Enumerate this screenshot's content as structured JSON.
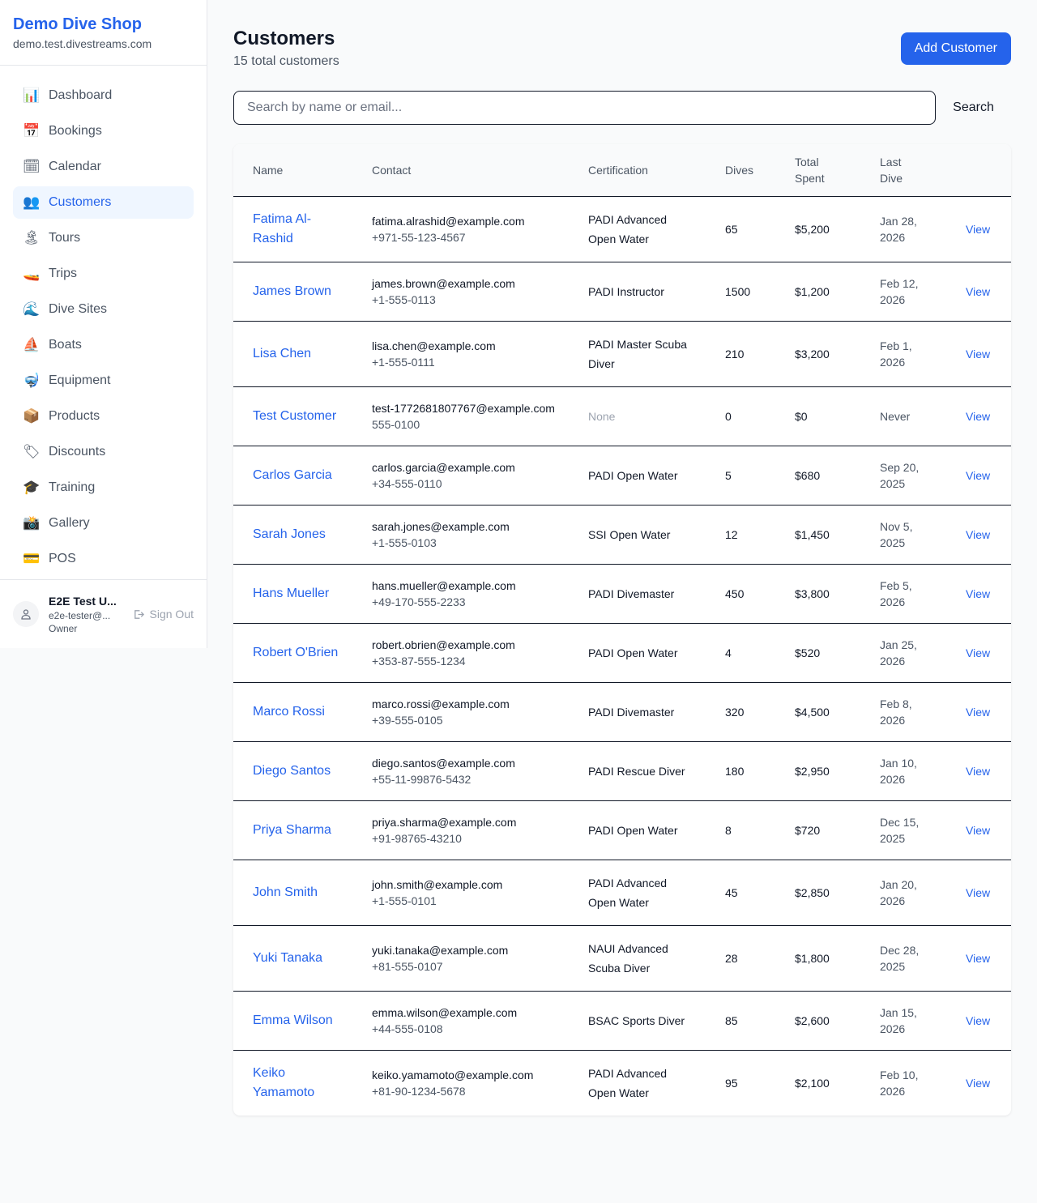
{
  "brand": {
    "name": "Demo Dive Shop",
    "domain": "demo.test.divestreams.com"
  },
  "nav": [
    {
      "label": "Dashboard",
      "icon": "📊",
      "icon_name": "bar-chart-icon"
    },
    {
      "label": "Bookings",
      "icon": "📅",
      "icon_name": "calendar-date-icon"
    },
    {
      "label": "Calendar",
      "icon": "🗓",
      "icon_name": "spiral-calendar-icon"
    },
    {
      "label": "Customers",
      "icon": "👥",
      "icon_name": "people-icon",
      "active": true
    },
    {
      "label": "Tours",
      "icon": "🏝",
      "icon_name": "island-icon"
    },
    {
      "label": "Trips",
      "icon": "🚤",
      "icon_name": "speedboat-icon"
    },
    {
      "label": "Dive Sites",
      "icon": "🌊",
      "icon_name": "wave-icon"
    },
    {
      "label": "Boats",
      "icon": "⛵",
      "icon_name": "sailboat-icon"
    },
    {
      "label": "Equipment",
      "icon": "🤿",
      "icon_name": "diving-mask-icon"
    },
    {
      "label": "Products",
      "icon": "📦",
      "icon_name": "package-icon"
    },
    {
      "label": "Discounts",
      "icon": "🏷",
      "icon_name": "tag-icon"
    },
    {
      "label": "Training",
      "icon": "🎓",
      "icon_name": "graduation-cap-icon"
    },
    {
      "label": "Gallery",
      "icon": "📸",
      "icon_name": "camera-icon"
    },
    {
      "label": "POS",
      "icon": "💳",
      "icon_name": "credit-card-icon"
    }
  ],
  "user": {
    "name": "E2E Test U...",
    "email": "e2e-tester@...",
    "role": "Owner",
    "sign_out": "Sign Out"
  },
  "page": {
    "title": "Customers",
    "subtitle": "15 total customers",
    "add_button": "Add Customer",
    "search_placeholder": "Search by name or email...",
    "search_button": "Search"
  },
  "table": {
    "headers": [
      "Name",
      "Contact",
      "Certification",
      "Dives",
      "Total Spent",
      "Last Dive",
      ""
    ],
    "rows": [
      {
        "name": "Fatima Al-Rashid",
        "email": "fatima.alrashid@example.com",
        "phone": "+971-55-123-4567",
        "cert": "PADI Advanced Open Water",
        "dives": "65",
        "spent": "$5,200",
        "last": "Jan 28, 2026",
        "action": "View"
      },
      {
        "name": "James Brown",
        "email": "james.brown@example.com",
        "phone": "+1-555-0113",
        "cert": "PADI Instructor",
        "dives": "1500",
        "spent": "$1,200",
        "last": "Feb 12, 2026",
        "action": "View"
      },
      {
        "name": "Lisa Chen",
        "email": "lisa.chen@example.com",
        "phone": "+1-555-0111",
        "cert": "PADI Master Scuba Diver",
        "dives": "210",
        "spent": "$3,200",
        "last": "Feb 1, 2026",
        "action": "View"
      },
      {
        "name": "Test Customer",
        "email": "test-1772681807767@example.com",
        "phone": "555-0100",
        "cert": "None",
        "dives": "0",
        "spent": "$0",
        "last": "Never",
        "action": "View"
      },
      {
        "name": "Carlos Garcia",
        "email": "carlos.garcia@example.com",
        "phone": "+34-555-0110",
        "cert": "PADI Open Water",
        "dives": "5",
        "spent": "$680",
        "last": "Sep 20, 2025",
        "action": "View"
      },
      {
        "name": "Sarah Jones",
        "email": "sarah.jones@example.com",
        "phone": "+1-555-0103",
        "cert": "SSI Open Water",
        "dives": "12",
        "spent": "$1,450",
        "last": "Nov 5, 2025",
        "action": "View"
      },
      {
        "name": "Hans Mueller",
        "email": "hans.mueller@example.com",
        "phone": "+49-170-555-2233",
        "cert": "PADI Divemaster",
        "dives": "450",
        "spent": "$3,800",
        "last": "Feb 5, 2026",
        "action": "View"
      },
      {
        "name": "Robert O'Brien",
        "email": "robert.obrien@example.com",
        "phone": "+353-87-555-1234",
        "cert": "PADI Open Water",
        "dives": "4",
        "spent": "$520",
        "last": "Jan 25, 2026",
        "action": "View"
      },
      {
        "name": "Marco Rossi",
        "email": "marco.rossi@example.com",
        "phone": "+39-555-0105",
        "cert": "PADI Divemaster",
        "dives": "320",
        "spent": "$4,500",
        "last": "Feb 8, 2026",
        "action": "View"
      },
      {
        "name": "Diego Santos",
        "email": "diego.santos@example.com",
        "phone": "+55-11-99876-5432",
        "cert": "PADI Rescue Diver",
        "dives": "180",
        "spent": "$2,950",
        "last": "Jan 10, 2026",
        "action": "View"
      },
      {
        "name": "Priya Sharma",
        "email": "priya.sharma@example.com",
        "phone": "+91-98765-43210",
        "cert": "PADI Open Water",
        "dives": "8",
        "spent": "$720",
        "last": "Dec 15, 2025",
        "action": "View"
      },
      {
        "name": "John Smith",
        "email": "john.smith@example.com",
        "phone": "+1-555-0101",
        "cert": "PADI Advanced Open Water",
        "dives": "45",
        "spent": "$2,850",
        "last": "Jan 20, 2026",
        "action": "View"
      },
      {
        "name": "Yuki Tanaka",
        "email": "yuki.tanaka@example.com",
        "phone": "+81-555-0107",
        "cert": "NAUI Advanced Scuba Diver",
        "dives": "28",
        "spent": "$1,800",
        "last": "Dec 28, 2025",
        "action": "View"
      },
      {
        "name": "Emma Wilson",
        "email": "emma.wilson@example.com",
        "phone": "+44-555-0108",
        "cert": "BSAC Sports Diver",
        "dives": "85",
        "spent": "$2,600",
        "last": "Jan 15, 2026",
        "action": "View"
      },
      {
        "name": "Keiko Yamamoto",
        "email": "keiko.yamamoto@example.com",
        "phone": "+81-90-1234-5678",
        "cert": "PADI Advanced Open Water",
        "dives": "95",
        "spent": "$2,100",
        "last": "Feb 10, 2026",
        "action": "View"
      }
    ]
  },
  "colors": {
    "accent": "#2563eb",
    "active_bg": "#eff6ff"
  }
}
